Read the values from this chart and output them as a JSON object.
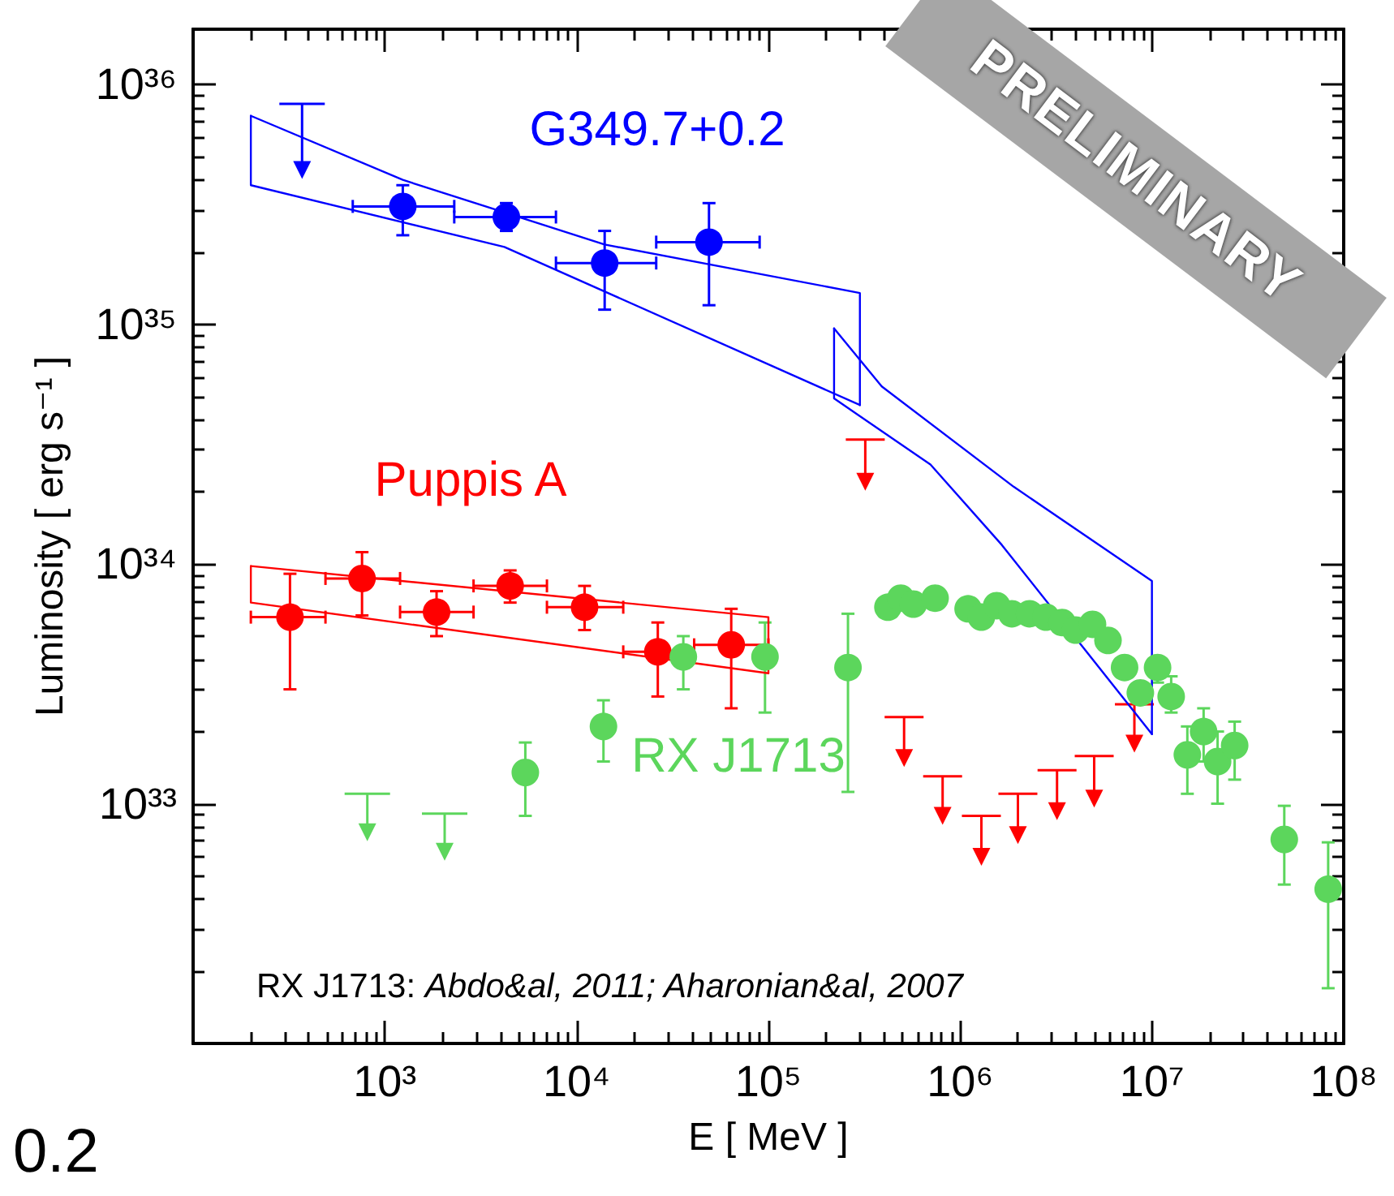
{
  "chart_data": {
    "type": "scatter",
    "xlabel": "E [ MeV ]",
    "ylabel": "Luminosity [ erg s⁻¹ ]",
    "xlim": [
      100,
      100000000
    ],
    "ylim": [
      1e+32,
      1.7e+36
    ],
    "xticks": [
      {
        "value": 100,
        "label": null
      },
      {
        "value": 200,
        "label": null
      },
      {
        "value": 300,
        "label": null
      },
      {
        "value": 400,
        "label": null
      },
      {
        "value": 500,
        "label": null
      },
      {
        "value": 600,
        "label": null
      },
      {
        "value": 700,
        "label": null
      },
      {
        "value": 800,
        "label": null
      },
      {
        "value": 900,
        "label": null
      },
      {
        "value": 1000,
        "label": "10³"
      },
      {
        "value": 2000,
        "label": null
      },
      {
        "value": 3000,
        "label": null
      },
      {
        "value": 4000,
        "label": null
      },
      {
        "value": 5000,
        "label": null
      },
      {
        "value": 6000,
        "label": null
      },
      {
        "value": 7000,
        "label": null
      },
      {
        "value": 8000,
        "label": null
      },
      {
        "value": 9000,
        "label": null
      },
      {
        "value": 10000,
        "label": "10⁴"
      },
      {
        "value": 20000,
        "label": null
      },
      {
        "value": 30000,
        "label": null
      },
      {
        "value": 40000,
        "label": null
      },
      {
        "value": 50000,
        "label": null
      },
      {
        "value": 60000,
        "label": null
      },
      {
        "value": 70000,
        "label": null
      },
      {
        "value": 80000,
        "label": null
      },
      {
        "value": 90000,
        "label": null
      },
      {
        "value": 100000,
        "label": "10⁵"
      },
      {
        "value": 200000,
        "label": null
      },
      {
        "value": 300000,
        "label": null
      },
      {
        "value": 400000,
        "label": null
      },
      {
        "value": 500000,
        "label": null
      },
      {
        "value": 600000,
        "label": null
      },
      {
        "value": 700000,
        "label": null
      },
      {
        "value": 800000,
        "label": null
      },
      {
        "value": 900000,
        "label": null
      },
      {
        "value": 1000000,
        "label": "10⁶"
      },
      {
        "value": 2000000,
        "label": null
      },
      {
        "value": 3000000,
        "label": null
      },
      {
        "value": 4000000,
        "label": null
      },
      {
        "value": 5000000,
        "label": null
      },
      {
        "value": 6000000,
        "label": null
      },
      {
        "value": 7000000,
        "label": null
      },
      {
        "value": 8000000,
        "label": null
      },
      {
        "value": 9000000,
        "label": null
      },
      {
        "value": 10000000,
        "label": "10⁷"
      },
      {
        "value": 20000000,
        "label": null
      },
      {
        "value": 30000000,
        "label": null
      },
      {
        "value": 40000000,
        "label": null
      },
      {
        "value": 50000000,
        "label": null
      },
      {
        "value": 60000000,
        "label": null
      },
      {
        "value": 70000000,
        "label": null
      },
      {
        "value": 80000000,
        "label": null
      },
      {
        "value": 90000000,
        "label": null
      },
      {
        "value": 100000000,
        "label": "10⁸"
      }
    ],
    "yticks": [
      {
        "value": 2e+32,
        "label": null
      },
      {
        "value": 3e+32,
        "label": null
      },
      {
        "value": 4e+32,
        "label": null
      },
      {
        "value": 5e+32,
        "label": null
      },
      {
        "value": 6e+32,
        "label": null
      },
      {
        "value": 7e+32,
        "label": null
      },
      {
        "value": 8e+32,
        "label": null
      },
      {
        "value": 9e+32,
        "label": null
      },
      {
        "value": 1e+33,
        "label": "10³³"
      },
      {
        "value": 2e+33,
        "label": null
      },
      {
        "value": 3e+33,
        "label": null
      },
      {
        "value": 4e+33,
        "label": null
      },
      {
        "value": 5e+33,
        "label": null
      },
      {
        "value": 6e+33,
        "label": null
      },
      {
        "value": 7e+33,
        "label": null
      },
      {
        "value": 8e+33,
        "label": null
      },
      {
        "value": 9e+33,
        "label": null
      },
      {
        "value": 1e+34,
        "label": "10³⁴"
      },
      {
        "value": 2e+34,
        "label": null
      },
      {
        "value": 3e+34,
        "label": null
      },
      {
        "value": 4e+34,
        "label": null
      },
      {
        "value": 5e+34,
        "label": null
      },
      {
        "value": 6e+34,
        "label": null
      },
      {
        "value": 7e+34,
        "label": null
      },
      {
        "value": 8e+34,
        "label": null
      },
      {
        "value": 9e+34,
        "label": null
      },
      {
        "value": 1e+35,
        "label": "10³⁵"
      },
      {
        "value": 2e+35,
        "label": null
      },
      {
        "value": 3e+35,
        "label": null
      },
      {
        "value": 4e+35,
        "label": null
      },
      {
        "value": 5e+35,
        "label": null
      },
      {
        "value": 6e+35,
        "label": null
      },
      {
        "value": 7e+35,
        "label": null
      },
      {
        "value": 8e+35,
        "label": null
      },
      {
        "value": 9e+35,
        "label": null
      },
      {
        "value": 1e+36,
        "label": "10³⁶"
      }
    ],
    "log": "xy",
    "annotations": [
      "RX J1713: Abdo&al, 2011; Aharonian&al, 2007",
      "PRELIMINARY",
      "0.2"
    ],
    "series": [
      {
        "name": "G349.7+0.2",
        "marker": "circle",
        "color": "#0000ff",
        "x": [
          1240,
          4300,
          14000,
          49000
        ],
        "values": [
          3.1e+35,
          2.8e+35,
          1.8e+35,
          2.2e+35
        ],
        "errors": [
          [
            2.35e+35,
            3.8e+35
          ],
          [
            2.45e+35,
            3.2e+35
          ],
          [
            1.15e+35,
            2.45e+35
          ],
          [
            1.2e+35,
            3.2e+35
          ]
        ],
        "xerrors": [
          [
            680,
            2300
          ],
          [
            2300,
            7800
          ],
          [
            7800,
            26000
          ],
          [
            26000,
            90000
          ]
        ]
      },
      {
        "marker": "triangle",
        "color": "#0000ff",
        "x": [
          370
        ],
        "values": [
          4.4e+35
        ],
        "errors": [
          [
            4.4e+35,
            8.3e+35
          ]
        ]
      },
      {
        "type": "line",
        "color": "#0000ff",
        "x": [
          200,
          1240,
          14000,
          300000,
          300000
        ],
        "values": [
          7.4e+35,
          4e+35,
          2.15e+35,
          1.35e+35,
          4.6e+34
        ]
      },
      {
        "type": "line",
        "color": "#0000ff",
        "x": [
          200,
          200,
          4200,
          300000
        ],
        "values": [
          7.4e+35,
          3.8e+35,
          2.1e+35,
          4.6e+34
        ]
      },
      {
        "type": "line",
        "color": "#0000ff",
        "x": [
          220000,
          390000,
          1900000,
          10000000,
          10000000
        ],
        "values": [
          9.6e+34,
          5.5e+34,
          2.1e+34,
          8.5e+33,
          1.95e+33
        ]
      },
      {
        "type": "line",
        "color": "#0000ff",
        "x": [
          220000,
          220000,
          700000,
          1650000,
          10000000
        ],
        "values": [
          9.6e+34,
          4.9e+34,
          2.6e+34,
          1.2e+34,
          1.95e+33
        ]
      },
      {
        "name": "Puppis A",
        "marker": "circle",
        "color": "#ff0000",
        "x": [
          320,
          760,
          1860,
          4500,
          11000,
          26500,
          64000
        ],
        "values": [
          6e+33,
          8.7e+33,
          6.3e+33,
          8.1e+33,
          6.6e+33,
          4.3e+33,
          4.6e+33
        ],
        "errors": [
          [
            3e+33,
            9.1e+33
          ],
          [
            6.1e+33,
            1.12e+34
          ],
          [
            5e+33,
            7.7e+33
          ],
          [
            6.9e+33,
            9.4e+33
          ],
          [
            5.3e+33,
            8.1e+33
          ],
          [
            2.8e+33,
            5.7e+33
          ],
          [
            2.5e+33,
            6.5e+33
          ]
        ],
        "xerrors": [
          [
            200,
            490
          ],
          [
            490,
            1200
          ],
          [
            1200,
            2900
          ],
          [
            2900,
            7000
          ],
          [
            7000,
            17500
          ],
          [
            17500,
            41000
          ],
          [
            41000,
            100000
          ]
        ]
      },
      {
        "marker": "triangle",
        "color": "#ff0000",
        "x": [
          320000,
          510000,
          810000,
          1290000,
          2000000,
          3200000,
          5000000,
          8100000
        ],
        "values": [
          2.2e+34,
          1.55e+33,
          8.9e+32,
          6e+32,
          7.4e+32,
          9.3e+32,
          1.05e+33,
          1.78e+33
        ],
        "errors": [
          [
            2.2e+34,
            3.3e+34
          ],
          [
            1.55e+33,
            2.3e+33
          ],
          [
            8.9e+32,
            1.3e+33
          ],
          [
            6e+32,
            8.9e+32
          ],
          [
            7.4e+32,
            1.1e+33
          ],
          [
            9.3e+32,
            1.38e+33
          ],
          [
            1.05e+33,
            1.58e+33
          ],
          [
            1.78e+33,
            2.6e+33
          ]
        ]
      },
      {
        "type": "line",
        "color": "#ff0000",
        "x": [
          200,
          100000,
          100000
        ],
        "values": [
          9.8e+33,
          6e+33,
          3.5e+33
        ]
      },
      {
        "type": "line",
        "color": "#ff0000",
        "x": [
          200,
          200,
          100000
        ],
        "values": [
          9.8e+33,
          6.9e+33,
          3.5e+33
        ]
      },
      {
        "name": "RX J1713",
        "marker": "circle",
        "color": "#5cd65c",
        "x": [
          5400,
          13800,
          36000,
          96000,
          260000,
          420000,
          490000,
          570000,
          740000,
          1100000,
          1290000,
          1550000,
          1860000,
          2300000,
          2800000,
          3400000,
          4000000,
          4900000,
          5900000,
          7200000,
          8700000,
          10700000,
          12600000,
          15300000,
          18600000,
          22000000,
          27000000,
          49000000,
          83000000
        ],
        "values": [
          1.35e+33,
          2.1e+33,
          4.1e+33,
          4.1e+33,
          3.7e+33,
          6.6e+33,
          7.2e+33,
          6.8e+33,
          7.2e+33,
          6.5e+33,
          6e+33,
          6.7e+33,
          6.2e+33,
          6.2e+33,
          6e+33,
          5.7e+33,
          5.3e+33,
          5.6e+33,
          4.8e+33,
          3.7e+33,
          2.9e+33,
          3.7e+33,
          2.8e+33,
          1.6e+33,
          2e+33,
          1.5e+33,
          1.75e+33,
          7.1e+32,
          4.4e+32
        ],
        "errors": [
          [
            8.9e+32,
            1.8e+33
          ],
          [
            1.5e+33,
            2.7e+33
          ],
          [
            3e+33,
            5e+33
          ],
          [
            2.4e+33,
            5.7e+33
          ],
          [
            1.12e+33,
            6.2e+33
          ],
          null,
          null,
          null,
          null,
          null,
          null,
          null,
          null,
          null,
          null,
          null,
          null,
          null,
          null,
          null,
          null,
          [
            3.2e+33,
            4.1e+33
          ],
          [
            2.4e+33,
            3.4e+33
          ],
          [
            1.1e+33,
            2.1e+33
          ],
          [
            1.5e+33,
            2.5e+33
          ],
          [
            1e+33,
            2e+33
          ],
          [
            1.26e+33,
            2.2e+33
          ],
          [
            4.6e+32,
            9.8e+32
          ],
          [
            1.7e+32,
            6.9e+32
          ]
        ]
      },
      {
        "marker": "triangle",
        "color": "#5cd65c",
        "x": [
          810,
          2050
        ],
        "values": [
          7.6e+32,
          6.3e+32
        ],
        "errors": [
          [
            7.6e+32,
            1.1e+33
          ],
          [
            6.3e+32,
            9.1e+32
          ]
        ]
      }
    ]
  }
}
